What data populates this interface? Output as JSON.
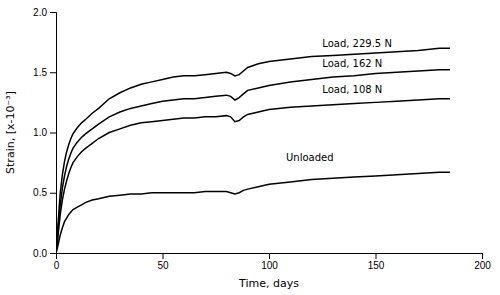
{
  "chart_data": {
    "type": "line",
    "xlabel": "Time, days",
    "ylabel": "Strain, [x-10⁻³]",
    "xlim": [
      0,
      200
    ],
    "ylim": [
      0,
      2
    ],
    "xticks": [
      0,
      50,
      100,
      150,
      200
    ],
    "yticks": [
      {
        "value": 0,
        "label": "0.0"
      },
      0.5,
      {
        "value": 1.0,
        "label": "1.0"
      },
      1.5,
      {
        "value": 2.0,
        "label": "2.0"
      }
    ],
    "grid": false,
    "x": [
      0,
      0.5,
      1,
      1.5,
      2,
      3,
      4,
      5,
      6,
      7,
      8,
      10,
      12,
      14,
      17,
      20,
      25,
      30,
      35,
      40,
      45,
      50,
      55,
      60,
      65,
      70,
      75,
      80,
      82,
      84,
      86,
      88,
      90,
      95,
      100,
      110,
      120,
      130,
      140,
      150,
      160,
      170,
      180,
      185
    ],
    "series": [
      {
        "color": "#000000",
        "values": [
          0.0,
          0.1,
          0.25,
          0.38,
          0.5,
          0.65,
          0.76,
          0.84,
          0.9,
          0.95,
          0.99,
          1.04,
          1.08,
          1.11,
          1.16,
          1.2,
          1.28,
          1.33,
          1.37,
          1.4,
          1.42,
          1.44,
          1.46,
          1.47,
          1.47,
          1.48,
          1.49,
          1.5,
          1.49,
          1.47,
          1.48,
          1.51,
          1.54,
          1.57,
          1.59,
          1.61,
          1.63,
          1.64,
          1.65,
          1.66,
          1.67,
          1.68,
          1.7,
          1.7
        ]
      },
      {
        "color": "#000000",
        "values": [
          0.0,
          0.08,
          0.2,
          0.3,
          0.4,
          0.54,
          0.64,
          0.72,
          0.78,
          0.83,
          0.87,
          0.92,
          0.96,
          0.99,
          1.03,
          1.07,
          1.13,
          1.17,
          1.2,
          1.22,
          1.24,
          1.26,
          1.27,
          1.28,
          1.28,
          1.29,
          1.3,
          1.31,
          1.3,
          1.27,
          1.29,
          1.32,
          1.35,
          1.37,
          1.39,
          1.42,
          1.44,
          1.46,
          1.47,
          1.49,
          1.5,
          1.51,
          1.52,
          1.52
        ]
      },
      {
        "color": "#000000",
        "values": [
          0.0,
          0.06,
          0.15,
          0.24,
          0.32,
          0.44,
          0.53,
          0.6,
          0.66,
          0.71,
          0.75,
          0.8,
          0.84,
          0.87,
          0.91,
          0.95,
          1.0,
          1.03,
          1.06,
          1.08,
          1.09,
          1.1,
          1.11,
          1.12,
          1.12,
          1.13,
          1.13,
          1.14,
          1.13,
          1.09,
          1.1,
          1.13,
          1.15,
          1.17,
          1.19,
          1.21,
          1.22,
          1.23,
          1.24,
          1.25,
          1.26,
          1.27,
          1.28,
          1.28
        ]
      },
      {
        "color": "#000000",
        "values": [
          0.0,
          0.03,
          0.07,
          0.11,
          0.15,
          0.21,
          0.26,
          0.29,
          0.32,
          0.34,
          0.36,
          0.38,
          0.4,
          0.42,
          0.44,
          0.45,
          0.47,
          0.48,
          0.49,
          0.49,
          0.5,
          0.5,
          0.5,
          0.5,
          0.5,
          0.51,
          0.51,
          0.51,
          0.5,
          0.49,
          0.5,
          0.52,
          0.53,
          0.55,
          0.57,
          0.59,
          0.61,
          0.62,
          0.63,
          0.64,
          0.65,
          0.66,
          0.67,
          0.67
        ]
      }
    ],
    "annotations": [
      {
        "text": "Load, 229.5 N",
        "x": 125,
        "y": 1.735
      },
      {
        "text": "Load, 162 N",
        "x": 125,
        "y": 1.575
      },
      {
        "text": "Load, 108 N",
        "x": 125,
        "y": 1.355
      },
      {
        "text": "Unloaded",
        "x": 108,
        "y": 0.79
      }
    ]
  }
}
